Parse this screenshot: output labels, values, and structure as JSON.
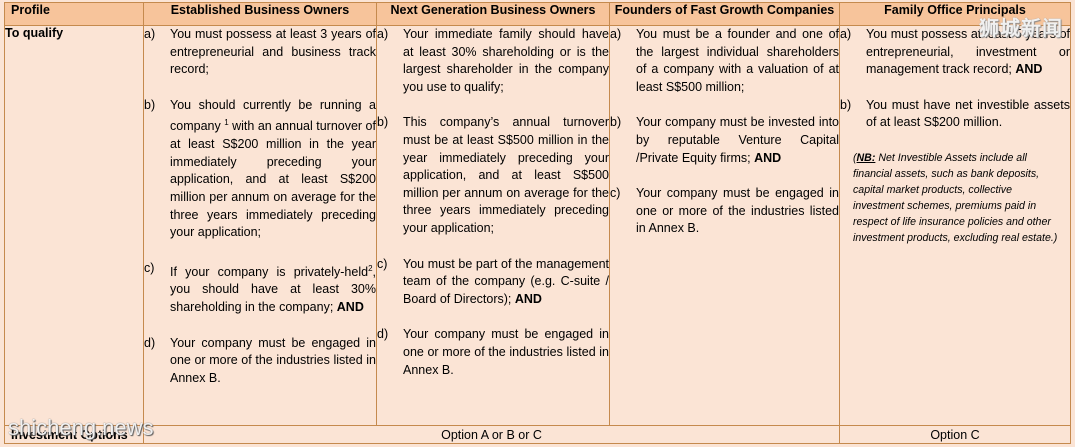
{
  "header": {
    "profile": "Profile",
    "col1": "Established Business Owners",
    "col2": "Next Generation Business Owners",
    "col3": "Founders of Fast Growth Companies",
    "col4": "Family Office Principals"
  },
  "row_label": "To qualify",
  "col1": [
    {
      "marker": "a)",
      "text": "You must possess at least 3 years of entrepreneurial and business track record;"
    },
    {
      "marker": "b)",
      "pre": "You should currently be running a company ",
      "sup": "1",
      "post": " with an annual turnover of at least S$200 million in the year immediately preceding your application, and at least S$200 million per annum on average for the three years immediately preceding your application;"
    },
    {
      "marker": "c)",
      "pre": "If your company is privately-held",
      "sup": "2",
      "post": ", you should have at least 30% shareholding in the company; ",
      "bold": "AND"
    },
    {
      "marker": "d)",
      "text": "Your company must be engaged in one or more of the industries listed in Annex B."
    }
  ],
  "col2": [
    {
      "marker": "a)",
      "text": "Your immediate family should have at least 30% shareholding or is the largest shareholder in the company you use to qualify;"
    },
    {
      "marker": "b)",
      "text": "This company’s annual turnover must be at least S$500 million in the year immediately preceding your application, and at least S$500 million per annum on average for the three years immediately preceding your application;"
    },
    {
      "marker": "c)",
      "text": "You must be part of the management team of the company (e.g. C-suite / Board of Directors); ",
      "bold": "AND"
    },
    {
      "marker": "d)",
      "text": "Your company must be engaged in one or more of the industries listed in Annex B."
    }
  ],
  "col3": [
    {
      "marker": "a)",
      "text": "You must be a founder and one of the largest individual shareholders of a company with a valuation of at least S$500 million;"
    },
    {
      "marker": "b)",
      "text": "Your company must be invested into by reputable Venture Capital /Private Equity firms; ",
      "bold": "AND"
    },
    {
      "marker": "c)",
      "text": "Your company must be engaged in one or more of the industries listed in Annex B."
    }
  ],
  "col4": [
    {
      "marker": "a)",
      "text": "You must possess at least 5 years of entrepreneurial, investment or management track record; ",
      "bold": "AND"
    },
    {
      "marker": "b)",
      "text": "You must have net investible assets of at least S$200 million."
    }
  ],
  "note": {
    "nb": "NB:",
    "text": " Net Investible Assets include all financial assets, such as bank deposits, capital market products, collective investment schemes, premiums paid in respect of life insurance policies and other investment products, excluding real estate.)"
  },
  "footer": {
    "label": "Investment Options",
    "options_abc": "Option A or B or C",
    "option_c": "Option C"
  },
  "watermark_top": "狮城新闻",
  "watermark_bottom": "shicheng.news"
}
